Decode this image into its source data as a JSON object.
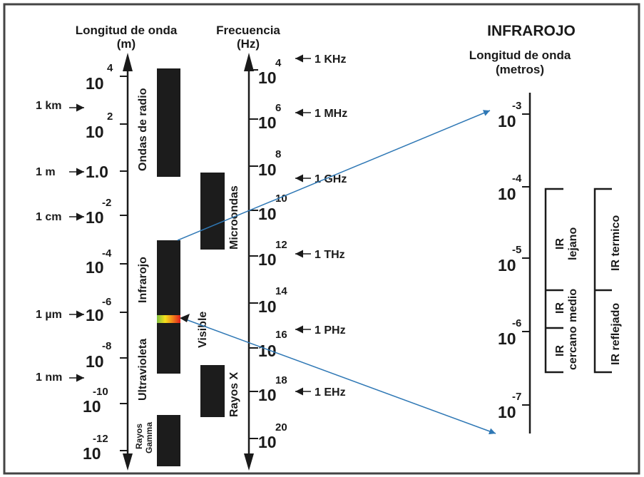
{
  "diagram": {
    "left_axis": {
      "title_line1": "Longitud de onda",
      "title_line2": "(m)",
      "ticks": [
        {
          "base": "10",
          "exp": "4"
        },
        {
          "base": "10",
          "exp": "2"
        },
        {
          "base": "1.0",
          "exp": ""
        },
        {
          "base": "10",
          "exp": "-2"
        },
        {
          "base": "10",
          "exp": "-4"
        },
        {
          "base": "10",
          "exp": "-6"
        },
        {
          "base": "10",
          "exp": "-8"
        },
        {
          "base": "10",
          "exp": "-10"
        },
        {
          "base": "10",
          "exp": "-12"
        }
      ],
      "unit_markers": [
        "1 km",
        "1 m",
        "1 cm",
        "1 µm",
        "1 nm"
      ]
    },
    "right_axis": {
      "title_line1": "Frecuencia",
      "title_line2": "(Hz)",
      "ticks": [
        {
          "base": "10",
          "exp": "4"
        },
        {
          "base": "10",
          "exp": "6"
        },
        {
          "base": "10",
          "exp": "8"
        },
        {
          "base": "10",
          "exp": "10"
        },
        {
          "base": "10",
          "exp": "12"
        },
        {
          "base": "10",
          "exp": "14"
        },
        {
          "base": "10",
          "exp": "16"
        },
        {
          "base": "10",
          "exp": "18"
        },
        {
          "base": "10",
          "exp": "20"
        }
      ],
      "unit_markers": [
        "1 KHz",
        "1 MHz",
        "1 GHz",
        "1 THz",
        "1 PHz",
        "1 EHz"
      ]
    },
    "bands": {
      "radio": "Ondas de radio",
      "microwave": "Microondas",
      "infrared": "Infrarojo",
      "visible": "Visible",
      "ultraviolet": "Ultravioleta",
      "xray": "Rayos X",
      "gamma_line1": "Rayos",
      "gamma_line2": "Gamma"
    },
    "infrared_panel": {
      "title": "INFRAROJO",
      "subtitle_line1": "Longitud de onda",
      "subtitle_line2": "(metros)",
      "ticks": [
        {
          "base": "10",
          "exp": "-3"
        },
        {
          "base": "10",
          "exp": "-4"
        },
        {
          "base": "10",
          "exp": "-5"
        },
        {
          "base": "10",
          "exp": "-6"
        },
        {
          "base": "10",
          "exp": "-7"
        }
      ],
      "regions": {
        "far_line1": "IR",
        "far_line2": "lejano",
        "mid_line1": "IR",
        "mid_line2": "medio",
        "near_line1": "IR",
        "near_line2": "cercano",
        "thermal": "IR termico",
        "reflected": "IR reflejado"
      }
    },
    "colors": {
      "frame": "#444444",
      "band_fill": "#1c1c1c",
      "arrow": "#2f78b5",
      "text": "#1a1a1a"
    }
  }
}
